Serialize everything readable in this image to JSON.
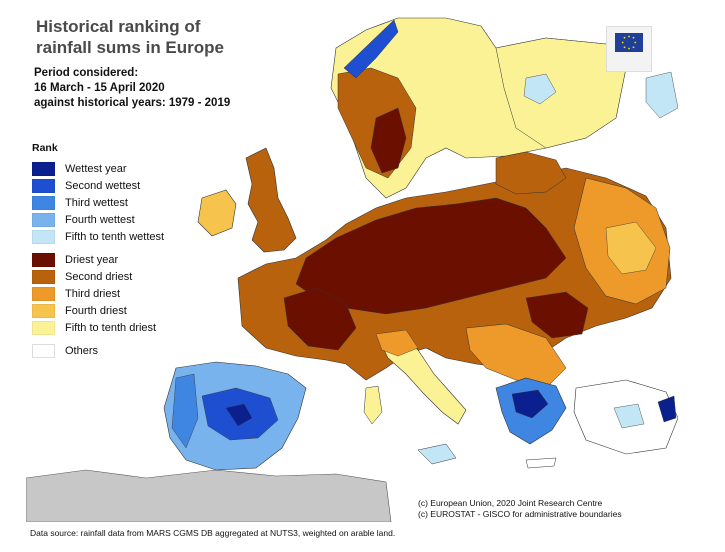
{
  "title": "Historical ranking of\nrainfall sums in Europe",
  "period": "Period considered:\n16 March - 15 April 2020\nagainst historical years: 1979 - 2019",
  "legend": {
    "heading": "Rank",
    "wet": [
      {
        "label": "Wettest year",
        "color": "#0b1f8f"
      },
      {
        "label": "Second wettest",
        "color": "#1f4fd1"
      },
      {
        "label": "Third wettest",
        "color": "#3f86e2"
      },
      {
        "label": "Fourth wettest",
        "color": "#79b3ee"
      },
      {
        "label": "Fifth to tenth wettest",
        "color": "#c3e6f6"
      }
    ],
    "dry": [
      {
        "label": "Driest year",
        "color": "#6b0f00"
      },
      {
        "label": "Second driest",
        "color": "#b8620e"
      },
      {
        "label": "Third driest",
        "color": "#ee9a2a"
      },
      {
        "label": "Fourth driest",
        "color": "#f6c44c"
      },
      {
        "label": "Fifth to tenth driest",
        "color": "#fbf296"
      }
    ],
    "others": {
      "label": "Others",
      "color": "#ffffff"
    }
  },
  "credits": {
    "line1": "(c) European Union, 2020 Joint Research Centre",
    "line2": "(c) EUROSTAT - GISCO for administrative boundaries"
  },
  "source": "Data source: rainfall data from MARS CGMS DB aggregated at NUTS3, weighted on arable land.",
  "colors": {
    "sea": "#ffffff",
    "non_eu_land": "#c7c7c7",
    "outline": "#222222"
  }
}
